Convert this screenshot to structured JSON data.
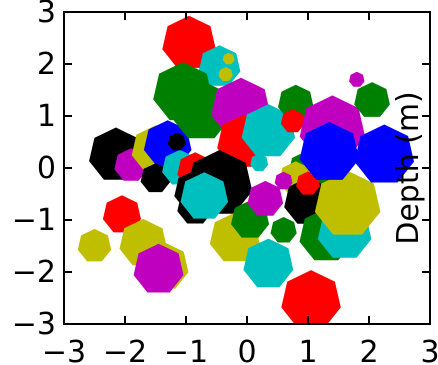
{
  "chart_data": {
    "type": "scatter",
    "title": "",
    "xlabel": "",
    "ylabel": "Depth (m)",
    "xlim": [
      -3,
      3
    ],
    "ylim": [
      -3,
      3
    ],
    "grid": false,
    "legend": "none",
    "marker": "heptagon",
    "x_ticks": [
      "−3",
      "−2",
      "−1",
      "0",
      "1",
      "2",
      "3"
    ],
    "y_ticks": [
      "3",
      "2",
      "1",
      "0",
      "−1",
      "−2",
      "−3"
    ],
    "points": [
      {
        "x": -2.15,
        "y": 0.25,
        "size": 0.45,
        "color": "#000000"
      },
      {
        "x": -2.05,
        "y": -0.9,
        "size": 0.32,
        "color": "#ff0000"
      },
      {
        "x": -2.5,
        "y": -1.5,
        "size": 0.28,
        "color": "#bfbf00"
      },
      {
        "x": -1.7,
        "y": -1.45,
        "size": 0.4,
        "color": "#bfbf00"
      },
      {
        "x": -1.35,
        "y": -1.9,
        "size": 0.4,
        "color": "#bfbf00"
      },
      {
        "x": -1.45,
        "y": -1.95,
        "size": 0.42,
        "color": "#bf00bf"
      },
      {
        "x": -1.9,
        "y": 0.05,
        "size": 0.28,
        "color": "#bf00bf"
      },
      {
        "x": -1.5,
        "y": 0.35,
        "size": 0.4,
        "color": "#bfbf00"
      },
      {
        "x": -1.3,
        "y": 0.45,
        "size": 0.4,
        "color": "#0000ff"
      },
      {
        "x": -1.5,
        "y": -0.2,
        "size": 0.25,
        "color": "#000000"
      },
      {
        "x": -1.1,
        "y": 0.0,
        "size": 0.3,
        "color": "#00bfbf"
      },
      {
        "x": -1.15,
        "y": 0.5,
        "size": 0.15,
        "color": "#000000"
      },
      {
        "x": -0.95,
        "y": 2.4,
        "size": 0.45,
        "color": "#ff0000"
      },
      {
        "x": -0.45,
        "y": 1.95,
        "size": 0.35,
        "color": "#00bfbf"
      },
      {
        "x": -0.3,
        "y": 2.1,
        "size": 0.1,
        "color": "#bfbf00"
      },
      {
        "x": -0.35,
        "y": 1.8,
        "size": 0.12,
        "color": "#bfbf00"
      },
      {
        "x": -1.05,
        "y": 1.45,
        "size": 0.5,
        "color": "#008000"
      },
      {
        "x": -0.75,
        "y": 1.1,
        "size": 0.5,
        "color": "#008000"
      },
      {
        "x": -0.1,
        "y": 1.15,
        "size": 0.5,
        "color": "#bf00bf"
      },
      {
        "x": -0.05,
        "y": 0.5,
        "size": 0.45,
        "color": "#ff0000"
      },
      {
        "x": 0.35,
        "y": 0.7,
        "size": 0.45,
        "color": "#00bfbf"
      },
      {
        "x": -0.85,
        "y": -0.05,
        "size": 0.3,
        "color": "#ff0000"
      },
      {
        "x": -0.85,
        "y": -0.45,
        "size": 0.35,
        "color": "#000000"
      },
      {
        "x": -0.85,
        "y": -0.75,
        "size": 0.3,
        "color": "#000000"
      },
      {
        "x": -0.45,
        "y": -0.3,
        "size": 0.55,
        "color": "#000000"
      },
      {
        "x": -0.7,
        "y": -0.55,
        "size": 0.4,
        "color": "#00bfbf"
      },
      {
        "x": -0.2,
        "y": -1.35,
        "size": 0.42,
        "color": "#bfbf00"
      },
      {
        "x": 0.05,
        "y": -1.0,
        "size": 0.32,
        "color": "#008000"
      },
      {
        "x": 0.3,
        "y": -0.6,
        "size": 0.3,
        "color": "#bf00bf"
      },
      {
        "x": 0.35,
        "y": -1.85,
        "size": 0.42,
        "color": "#00bfbf"
      },
      {
        "x": 0.6,
        "y": -1.2,
        "size": 0.22,
        "color": "#008000"
      },
      {
        "x": 0.8,
        "y": 1.25,
        "size": 0.3,
        "color": "#008000"
      },
      {
        "x": 0.75,
        "y": 0.9,
        "size": 0.2,
        "color": "#ff0000"
      },
      {
        "x": 1.05,
        "y": -0.1,
        "size": 0.4,
        "color": "#008000"
      },
      {
        "x": 0.8,
        "y": -0.2,
        "size": 0.28,
        "color": "#bfbf00"
      },
      {
        "x": 1.0,
        "y": -0.65,
        "size": 0.4,
        "color": "#000000"
      },
      {
        "x": 1.3,
        "y": -1.3,
        "size": 0.45,
        "color": "#008000"
      },
      {
        "x": 1.6,
        "y": -1.25,
        "size": 0.45,
        "color": "#00bfbf"
      },
      {
        "x": 1.65,
        "y": -0.7,
        "size": 0.55,
        "color": "#bfbf00"
      },
      {
        "x": 1.05,
        "y": -2.55,
        "size": 0.5,
        "color": "#ff0000"
      },
      {
        "x": 1.0,
        "y": -0.3,
        "size": 0.2,
        "color": "#ff0000"
      },
      {
        "x": 1.4,
        "y": 0.75,
        "size": 0.55,
        "color": "#bf00bf"
      },
      {
        "x": 1.35,
        "y": 0.3,
        "size": 0.5,
        "color": "#0000ff"
      },
      {
        "x": 2.25,
        "y": 0.25,
        "size": 0.5,
        "color": "#0000ff"
      },
      {
        "x": 2.05,
        "y": 1.3,
        "size": 0.3,
        "color": "#008000"
      },
      {
        "x": 1.8,
        "y": 1.7,
        "size": 0.13,
        "color": "#bf00bf"
      },
      {
        "x": 0.6,
        "y": -0.25,
        "size": 0.15,
        "color": "#bf00bf"
      },
      {
        "x": 0.2,
        "y": 0.1,
        "size": 0.15,
        "color": "#00bfbf"
      }
    ]
  }
}
